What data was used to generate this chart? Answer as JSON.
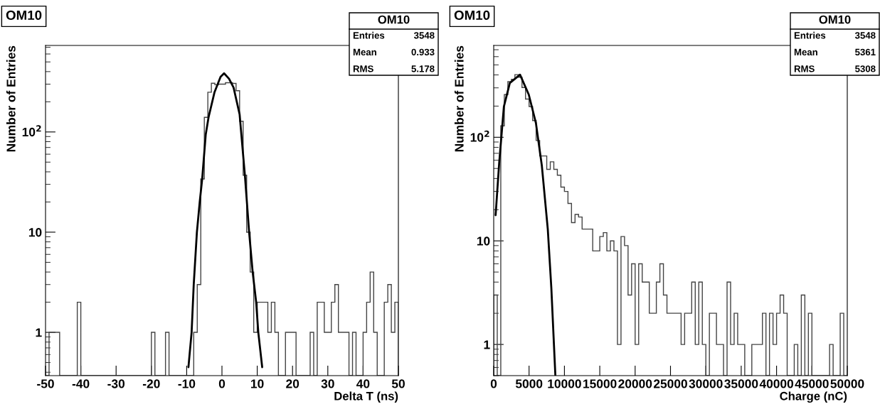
{
  "chart_data": [
    {
      "type": "histogram",
      "title": "OM10",
      "xlabel": "Delta T (ns)",
      "ylabel": "Number of Entries",
      "log": "y",
      "grid": false,
      "legend": false,
      "xlim": [
        -50,
        50
      ],
      "xticks": [
        -50,
        -40,
        -30,
        -20,
        -10,
        0,
        10,
        20,
        30,
        40,
        50
      ],
      "ylim": [
        0.37,
        730
      ],
      "yticks": [
        1,
        10,
        {
          "value": 100,
          "label": "10$^{2}$"
        }
      ],
      "annotations": [
        "OM10",
        "Entries 3548",
        "Mean 0.933",
        "RMS 5.178"
      ],
      "series": [
        {
          "type": "histogram",
          "color": "#444444",
          "bins": [
            -50,
            -49,
            -48,
            -47,
            -46,
            -45,
            -44,
            -43,
            -42,
            -41,
            -40,
            -39,
            -38,
            -37,
            -36,
            -35,
            -34,
            -33,
            -32,
            -31,
            -30,
            -29,
            -28,
            -27,
            -26,
            -25,
            -24,
            -23,
            -22,
            -21,
            -20,
            -19,
            -18,
            -17,
            -16,
            -15,
            -14,
            -13,
            -12,
            -11,
            -10,
            -9,
            -8,
            -7,
            -6,
            -5,
            -4,
            -3,
            -2,
            -1,
            0,
            1,
            2,
            3,
            4,
            5,
            6,
            7,
            8,
            9,
            10,
            11,
            12,
            13,
            14,
            15,
            16,
            17,
            18,
            19,
            20,
            21,
            22,
            23,
            24,
            25,
            26,
            27,
            28,
            29,
            30,
            31,
            32,
            33,
            34,
            35,
            36,
            37,
            38,
            39,
            40,
            41,
            42,
            43,
            44,
            45,
            46,
            47,
            48,
            49,
            50
          ],
          "values": [
            null,
            1,
            1,
            1,
            null,
            null,
            null,
            null,
            null,
            2,
            null,
            null,
            null,
            null,
            null,
            null,
            null,
            null,
            null,
            null,
            null,
            null,
            null,
            null,
            null,
            null,
            null,
            null,
            null,
            null,
            1,
            null,
            null,
            null,
            1,
            null,
            null,
            null,
            null,
            null,
            null,
            null,
            1,
            3,
            34,
            140,
            249,
            306,
            296,
            300,
            300,
            310,
            310,
            305,
            258,
            128,
            37,
            10,
            4,
            1,
            2,
            2,
            2,
            1,
            2,
            1,
            null,
            null,
            1,
            1,
            1,
            null,
            null,
            null,
            null,
            1,
            null,
            2,
            2,
            1,
            1,
            2,
            3,
            1,
            1,
            1,
            null,
            1,
            null,
            null,
            1,
            2,
            4,
            1,
            null,
            null,
            2,
            3,
            1,
            2
          ]
        },
        {
          "type": "line",
          "color": "#000000",
          "x": [
            -9.5,
            -8.6,
            -8.0,
            -7.1,
            -6.3,
            -5.6,
            -4.6,
            -3.8,
            -2.1,
            -0.4,
            0.6,
            2.0,
            3.3,
            5.0,
            6.5,
            7.7,
            8.7,
            9.7,
            10.3,
            11.4
          ],
          "values": [
            0.45,
            1,
            3,
            10,
            20,
            34,
            94,
            140,
            250,
            355,
            385,
            340,
            277,
            150,
            37,
            10,
            4,
            2,
            1,
            0.45
          ]
        }
      ]
    },
    {
      "type": "histogram",
      "title": "OM10",
      "xlabel": "Charge (nC)",
      "ylabel": "Number of Entries",
      "log": "y",
      "grid": false,
      "legend": false,
      "xlim": [
        0,
        50000
      ],
      "xticks": [
        0,
        5000,
        10000,
        15000,
        20000,
        25000,
        30000,
        35000,
        40000,
        45000,
        50000
      ],
      "ylim": [
        0.5,
        770
      ],
      "yticks": [
        1,
        10,
        {
          "value": 100,
          "label": "10$^{2}$"
        }
      ],
      "annotations": [
        "OM10",
        "Entries 3548",
        "Mean 5361",
        "RMS 5308"
      ],
      "series": [
        {
          "type": "histogram",
          "color": "#444444",
          "bins": [
            0,
            500,
            1000,
            1500,
            2000,
            2500,
            3000,
            3500,
            4000,
            4500,
            5000,
            5500,
            6000,
            6500,
            7000,
            7500,
            8000,
            8500,
            9000,
            9500,
            10000,
            10500,
            11000,
            11500,
            12000,
            12500,
            13000,
            13500,
            14000,
            14500,
            15000,
            15500,
            16000,
            16500,
            17000,
            17500,
            18000,
            18500,
            19000,
            19500,
            20000,
            20500,
            21000,
            21500,
            22000,
            22500,
            23000,
            23500,
            24000,
            24500,
            25000,
            25500,
            26000,
            26500,
            27000,
            27500,
            28000,
            28500,
            29000,
            29500,
            30000,
            30500,
            31000,
            31500,
            32000,
            32500,
            33000,
            33500,
            34000,
            34500,
            35000,
            35500,
            36000,
            36500,
            37000,
            37500,
            38000,
            38500,
            39000,
            39500,
            40000,
            40500,
            41000,
            41500,
            42000,
            42500,
            43000,
            43500,
            44000,
            44500,
            45000,
            45500,
            46000,
            46500,
            47000,
            47500,
            48000,
            48500,
            49000,
            49500,
            50000
          ],
          "values": [
            3,
            null,
            129,
            258,
            344,
            362,
            402,
            380,
            302,
            234,
            198,
            145,
            93,
            66,
            66,
            49,
            58,
            49,
            43,
            33,
            30,
            23,
            15,
            18,
            17,
            13,
            13,
            13,
            8,
            8,
            11,
            12,
            8,
            10,
            8,
            1,
            11,
            9,
            3,
            6,
            1,
            6,
            4,
            4,
            2,
            2,
            4,
            6,
            3,
            2,
            2,
            2,
            2,
            1,
            2,
            2,
            4,
            1,
            4,
            1,
            null,
            2,
            2,
            1,
            1,
            null,
            4,
            1,
            2,
            1,
            1,
            null,
            null,
            1,
            1,
            1,
            2,
            null,
            2,
            1,
            2,
            3,
            2,
            null,
            null,
            1,
            null,
            3,
            null,
            2,
            null,
            null,
            null,
            null,
            null,
            1,
            null,
            null,
            2,
            null
          ]
        },
        {
          "type": "line",
          "color": "#000000",
          "x": [
            270,
            770,
            1440,
            2280,
            3720,
            4960,
            5970,
            6810,
            7650,
            8150,
            8720
          ],
          "values": [
            17.7,
            56,
            198,
            334,
            402,
            258,
            137,
            53,
            12.9,
            3.5,
            0.5
          ]
        }
      ]
    }
  ]
}
